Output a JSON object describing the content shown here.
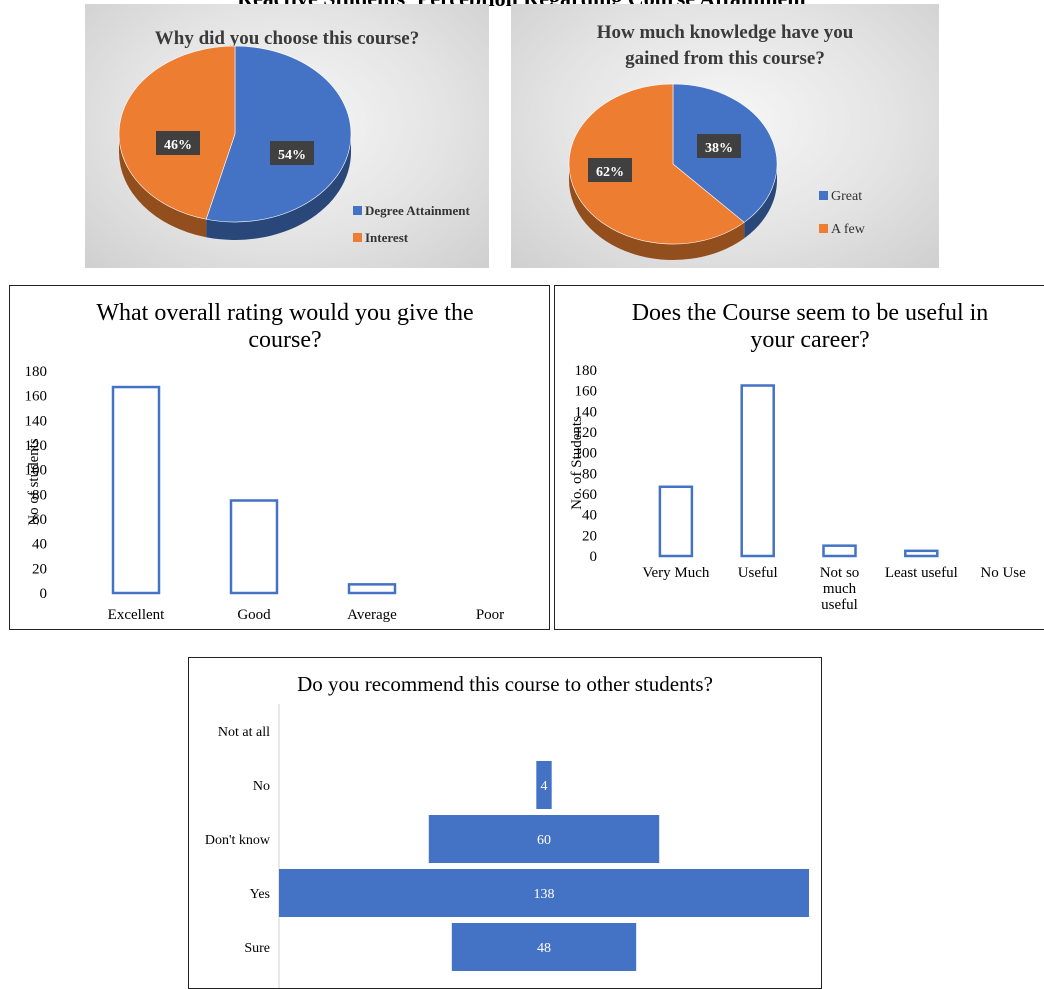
{
  "page_title": "Reactive Students' Perception Regarding Course Attainment",
  "colors": {
    "blue": "#4472c4",
    "orange": "#ed7d31",
    "dark_blue": "#2f4f8a",
    "dark_orange": "#b85d22",
    "label_bg": "#404040"
  },
  "chart_data": [
    {
      "type": "pie",
      "title": "Why did you choose this course?",
      "labels": [
        "Degree Attainment",
        "Interest"
      ],
      "values": [
        54,
        46
      ],
      "value_labels": [
        "54%",
        "46%"
      ],
      "colors": [
        "#4472c4",
        "#ed7d31"
      ],
      "legend": "right",
      "style": "3d"
    },
    {
      "type": "pie",
      "title_lines": [
        "How much knowledge have you",
        "gained from this course?"
      ],
      "labels": [
        "Great",
        "A few"
      ],
      "values": [
        38,
        62
      ],
      "value_labels": [
        "38%",
        "62%"
      ],
      "colors": [
        "#4472c4",
        "#ed7d31"
      ],
      "legend": "right",
      "style": "3d"
    },
    {
      "type": "bar",
      "title_lines": [
        "What overall rating would you give the",
        "course?"
      ],
      "categories": [
        "Excellent",
        "Good",
        "Average",
        "Poor"
      ],
      "values": [
        167,
        75,
        7,
        0
      ],
      "ylabel": "No of students",
      "ylim": [
        0,
        180
      ],
      "yticks": [
        "0",
        "20",
        "40",
        "60",
        "80",
        "100",
        "120",
        "140",
        "160",
        "180"
      ],
      "grid": false
    },
    {
      "type": "bar",
      "title_lines": [
        "Does the Course seem to be useful in",
        "your career?"
      ],
      "categories": [
        [
          "Very Much"
        ],
        [
          "Useful"
        ],
        [
          "Not so",
          "much",
          "useful"
        ],
        [
          "Least useful"
        ],
        [
          "No Use"
        ]
      ],
      "values": [
        67,
        165,
        10,
        5,
        0
      ],
      "ylabel": "No. of Students",
      "ylim": [
        0,
        180
      ],
      "yticks": [
        "0",
        "20",
        "40",
        "60",
        "80",
        "100",
        "120",
        "140",
        "160",
        "180"
      ],
      "grid": false
    },
    {
      "type": "bar",
      "orientation": "horizontal",
      "title": "Do you recommend this course to other students?",
      "categories": [
        "Not at all",
        "No",
        "Don't know",
        "Yes",
        "Sure"
      ],
      "values": [
        0,
        4,
        60,
        138,
        48
      ],
      "value_labels": [
        "",
        "4",
        "60",
        "138",
        "48"
      ],
      "grid": false
    }
  ]
}
